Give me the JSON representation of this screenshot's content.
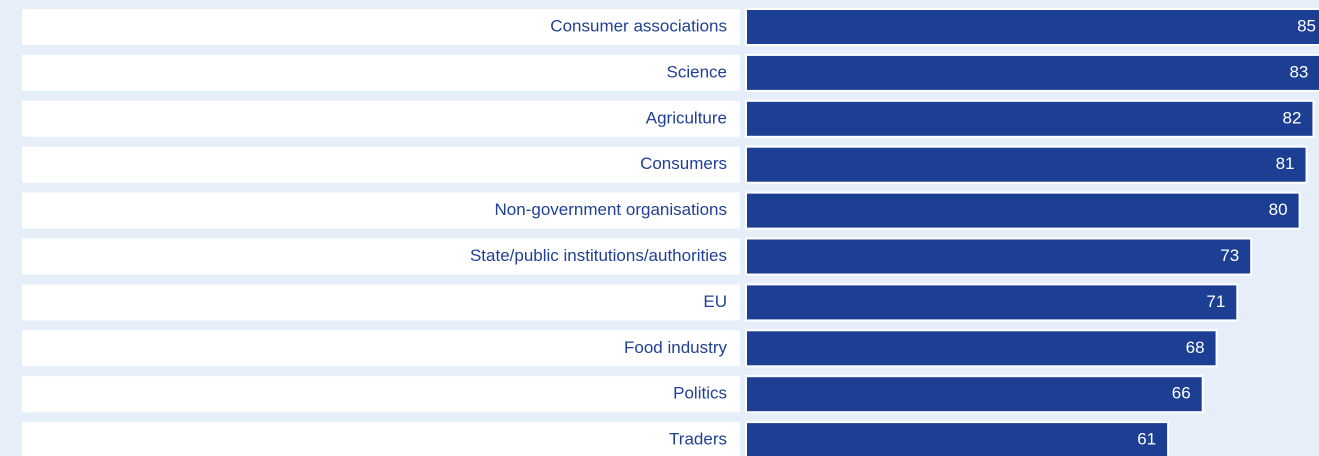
{
  "chart_data": {
    "type": "bar",
    "orientation": "horizontal",
    "categories": [
      "Consumer associations",
      "Science",
      "Agriculture",
      "Consumers",
      "Non-government organisations",
      "State/public institutions/authorities",
      "EU",
      "Food industry",
      "Politics",
      "Traders"
    ],
    "values": [
      85,
      83,
      82,
      81,
      80,
      73,
      71,
      68,
      66,
      61
    ],
    "color": "#1c3f94"
  }
}
